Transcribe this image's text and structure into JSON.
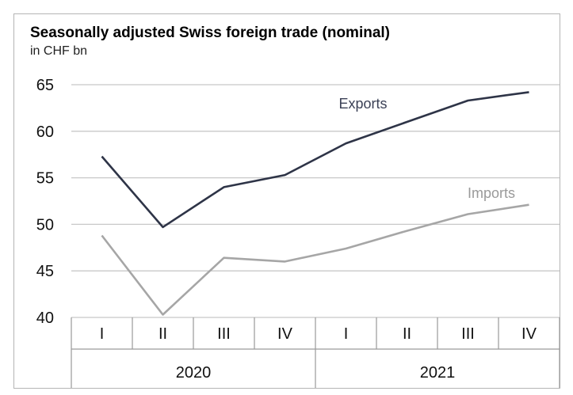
{
  "chart_data": {
    "type": "line",
    "title": "Seasonally adjusted Swiss foreign trade (nominal)",
    "subtitle": "in CHF bn",
    "ylim": [
      40,
      65
    ],
    "yticks": [
      "40",
      "45",
      "50",
      "55",
      "60",
      "65"
    ],
    "grid": true,
    "categories": [
      "I",
      "II",
      "III",
      "IV",
      "I",
      "II",
      "III",
      "IV"
    ],
    "groups": [
      {
        "label": "2020",
        "span": 4
      },
      {
        "label": "2021",
        "span": 4
      }
    ],
    "series": [
      {
        "name": "Exports",
        "color": "#2e3447",
        "values": [
          57.3,
          49.7,
          54.0,
          55.3,
          58.7,
          61.0,
          63.3,
          64.2
        ]
      },
      {
        "name": "Imports",
        "color": "#a6a6a6",
        "values": [
          48.8,
          40.3,
          46.4,
          46.0,
          47.4,
          49.3,
          51.1,
          52.1
        ]
      }
    ]
  }
}
